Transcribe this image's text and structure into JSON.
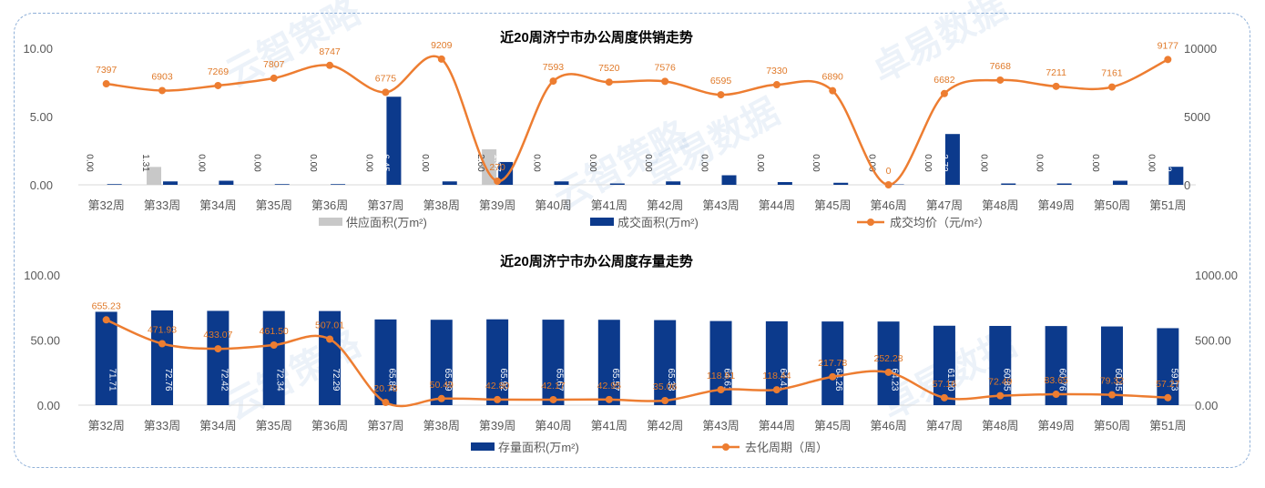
{
  "colors": {
    "supply": "#c8c8c8",
    "deal": "#0c3a8c",
    "price_line": "#ed7d31",
    "label_orange": "#e07a2a",
    "axis_text": "#595959",
    "frame": "#8fb0d8",
    "watermark": "#4682c8"
  },
  "watermarks": [
    "云智策略",
    "卓易数据",
    "云智策略",
    "卓易数据",
    "云智策略",
    "卓易数据"
  ],
  "chart_data": [
    {
      "type": "bar+line",
      "title": "近20周济宁市办公周度供销走势",
      "categories": [
        "第32周",
        "第33周",
        "第34周",
        "第35周",
        "第36周",
        "第37周",
        "第38周",
        "第39周",
        "第40周",
        "第41周",
        "第42周",
        "第43周",
        "第44周",
        "第45周",
        "第46周",
        "第47周",
        "第48周",
        "第49周",
        "第50周",
        "第51周"
      ],
      "left_axis": {
        "min": 0,
        "max": 10,
        "ticks": [
          "0.00",
          "5.00",
          "10.00"
        ]
      },
      "right_axis": {
        "min": 0,
        "max": 10000,
        "ticks": [
          "0",
          "5000",
          "10000"
        ]
      },
      "series": [
        {
          "name": "供应面积(万m²)",
          "kind": "bar",
          "axis": "left",
          "values": [
            0,
            1.31,
            0,
            0,
            0,
            0,
            0,
            2.6,
            0,
            0,
            0,
            0,
            0,
            0,
            0,
            0,
            0,
            0,
            0,
            0
          ],
          "labels": [
            "0.00",
            "1.31",
            "0.00",
            "0.00",
            "0.00",
            "0.00",
            "0.00",
            "2.60",
            "0.00",
            "0.00",
            "0.00",
            "0.00",
            "0.00",
            "0.00",
            "0.00",
            "0.00",
            "0.00",
            "0.00",
            "0.00",
            "0.00"
          ]
        },
        {
          "name": "成交面积(万m²)",
          "kind": "bar",
          "axis": "left",
          "values": [
            0.05,
            0.25,
            0.3,
            0.05,
            0.05,
            6.45,
            0.25,
            1.67,
            0.25,
            0.1,
            0.25,
            0.7,
            0.2,
            0.15,
            0.03,
            3.72,
            0.1,
            0.1,
            0.3,
            1.32
          ],
          "labels": [
            "",
            "",
            "",
            "",
            "",
            "6.45",
            "",
            "1.67",
            "",
            "",
            "",
            "",
            "",
            "",
            "",
            "3.72",
            "",
            "",
            "",
            "1.32"
          ]
        },
        {
          "name": "成交均价（元/m²）",
          "kind": "line",
          "axis": "right",
          "values": [
            7397,
            6903,
            7269,
            7807,
            8747,
            6775,
            9209,
            270,
            7593,
            7520,
            7576,
            6595,
            7330,
            6890,
            0,
            6682,
            7668,
            7211,
            7161,
            9177
          ],
          "labels": [
            "7397",
            "6903",
            "7269",
            "7807",
            "8747",
            "6775",
            "9209",
            "270",
            "7593",
            "7520",
            "7576",
            "6595",
            "7330",
            "6890",
            "0",
            "6682",
            "7668",
            "7211",
            "7161",
            "9177"
          ]
        }
      ]
    },
    {
      "type": "bar+line",
      "title": "近20周济宁市办公周度存量走势",
      "categories": [
        "第32周",
        "第33周",
        "第34周",
        "第35周",
        "第36周",
        "第37周",
        "第38周",
        "第39周",
        "第40周",
        "第41周",
        "第42周",
        "第43周",
        "第44周",
        "第45周",
        "第46周",
        "第47周",
        "第48周",
        "第49周",
        "第50周",
        "第51周"
      ],
      "left_axis": {
        "min": 0,
        "max": 100,
        "ticks": [
          "0.00",
          "50.00",
          "100.00"
        ]
      },
      "right_axis": {
        "min": 0,
        "max": 1000,
        "ticks": [
          "0.00",
          "500.00",
          "1000.00"
        ]
      },
      "series": [
        {
          "name": "存量面积(万m²)",
          "kind": "bar",
          "axis": "left",
          "values": [
            71.71,
            72.76,
            72.42,
            72.34,
            72.29,
            65.84,
            65.59,
            65.92,
            65.67,
            65.57,
            65.33,
            64.61,
            64.41,
            64.26,
            64.23,
            61.0,
            60.85,
            60.76,
            60.45,
            59.13
          ],
          "labels": [
            "71.71",
            "72.76",
            "72.42",
            "72.34",
            "72.29",
            "65.84",
            "65.59",
            "65.92",
            "65.67",
            "65.57",
            "65.33",
            "64.61",
            "64.41",
            "64.26",
            "64.23",
            "61.00",
            "60.85",
            "60.76",
            "60.45",
            "59.13"
          ]
        },
        {
          "name": "去化周期（周）",
          "kind": "line",
          "axis": "right",
          "values": [
            655.23,
            471.93,
            433.07,
            461.5,
            507.01,
            20.78,
            50.49,
            42.8,
            42.17,
            42.95,
            35.06,
            118.91,
            118.44,
            217.78,
            252.28,
            57.16,
            72.49,
            83.65,
            79.32,
            57.27
          ],
          "labels": [
            "655.23",
            "471.93",
            "433.07",
            "461.50",
            "507.01",
            "20.78",
            "50.49",
            "42.80",
            "42.17",
            "42.95",
            "35.06",
            "118.91",
            "118.44",
            "217.78",
            "252.28",
            "57.16",
            "72.49",
            "83.65",
            "79.32",
            "57.27"
          ]
        }
      ]
    }
  ]
}
